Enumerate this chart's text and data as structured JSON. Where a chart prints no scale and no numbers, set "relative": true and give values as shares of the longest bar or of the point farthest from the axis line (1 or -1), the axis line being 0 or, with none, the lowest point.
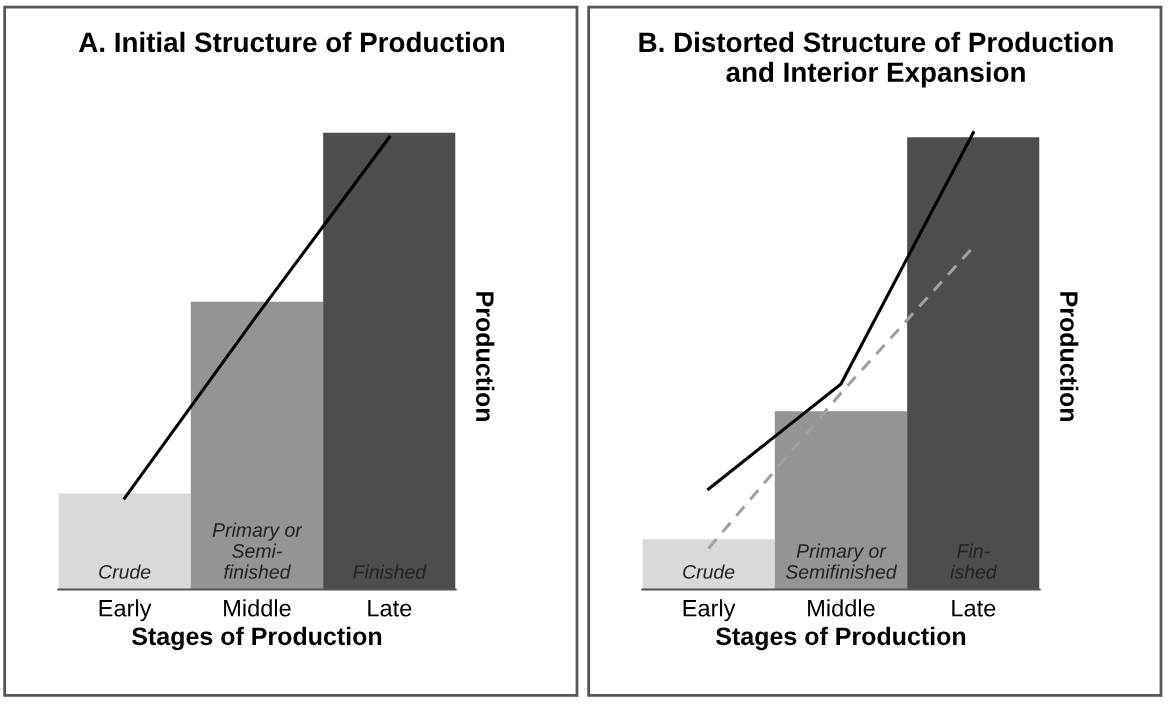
{
  "chart_data": [
    {
      "type": "bar",
      "title": "A. Initial Structure of Production",
      "xlabel": "Stages of Production",
      "ylabel": "Production",
      "relative": true,
      "tick_labels": "x",
      "categories": [
        "Early",
        "Middle",
        "Late"
      ],
      "series": [
        {
          "colors": [
            "#d9d9d9",
            "#939594",
            "#4d4d4d"
          ],
          "values": [
            0.21,
            0.63,
            1
          ]
        },
        {
          "type": "line",
          "color": "#000000",
          "line_style": "solid",
          "values": [
            0.2,
            0.6,
            0.99
          ]
        }
      ],
      "annotations": [
        "Crude",
        "Primary or\nSemi-\nfinished",
        "Finished"
      ]
    },
    {
      "type": "bar",
      "title": "B. Distorted Structure of Production\nand Interior Expansion",
      "xlabel": "Stages of Production",
      "ylabel": "Production",
      "relative": true,
      "tick_labels": "x",
      "categories": [
        "Early",
        "Middle",
        "Late"
      ],
      "series": [
        {
          "colors": [
            "#d9d9d9",
            "#939594",
            "#4d4d4d"
          ],
          "values": [
            0.11,
            0.39,
            0.99
          ]
        },
        {
          "type": "line",
          "color": "#000000",
          "line_style": "solid",
          "values": [
            0.22,
            0.45,
            1
          ]
        },
        {
          "type": "line",
          "color": "#a0a0a0",
          "line_style": "dashed",
          "values": [
            0.09,
            0.43,
            0.75
          ]
        }
      ],
      "annotations": [
        "Crude",
        "Primary or\nSemifinished",
        "Fin-\nished"
      ]
    }
  ]
}
